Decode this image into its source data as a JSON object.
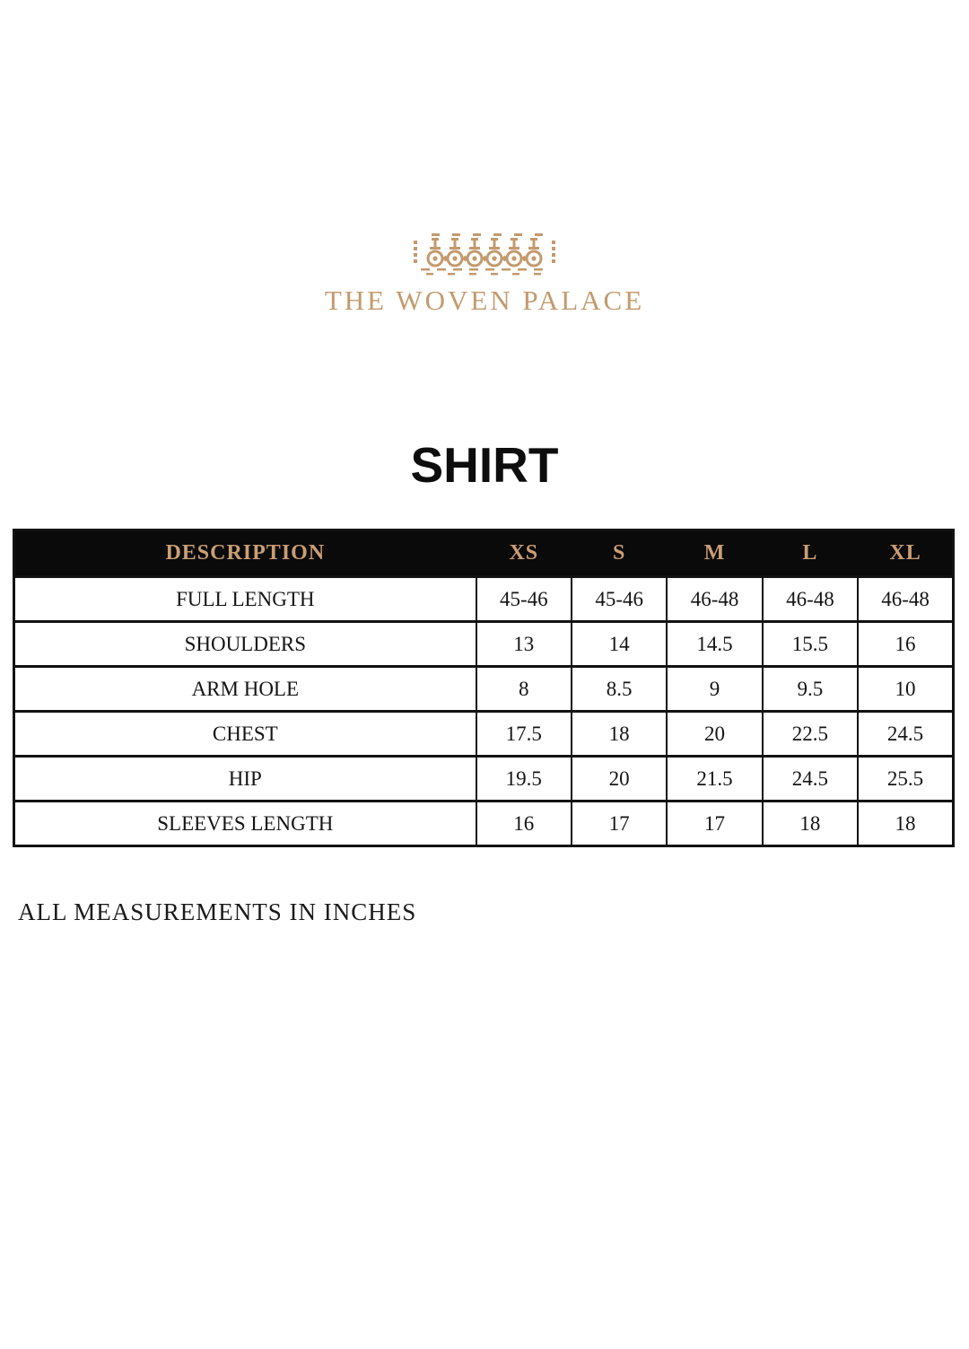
{
  "brand": {
    "name": "THE WOVEN PALACE",
    "ornament_icon": "palace-railing-ornament"
  },
  "page_title": "SHIRT",
  "size_chart": {
    "columns": [
      "DESCRIPTION",
      "XS",
      "S",
      "M",
      "L",
      "XL"
    ],
    "rows": [
      {
        "label": "FULL LENGTH",
        "values": [
          "45-46",
          "45-46",
          "46-48",
          "46-48",
          "46-48"
        ]
      },
      {
        "label": "SHOULDERS",
        "values": [
          "13",
          "14",
          "14.5",
          "15.5",
          "16"
        ]
      },
      {
        "label": "ARM HOLE",
        "values": [
          "8",
          "8.5",
          "9",
          "9.5",
          "10"
        ]
      },
      {
        "label": "CHEST",
        "values": [
          "17.5",
          "18",
          "20",
          "22.5",
          "24.5"
        ]
      },
      {
        "label": "HIP",
        "values": [
          "19.5",
          "20",
          "21.5",
          "24.5",
          "25.5"
        ]
      },
      {
        "label": "SLEEVES LENGTH",
        "values": [
          "16",
          "17",
          "17",
          "18",
          "18"
        ]
      }
    ]
  },
  "footnote": "ALL MEASUREMENTS IN INCHES",
  "colors": {
    "gold": "#c39a6e",
    "header_bg": "#0a0a0a",
    "header_text": "#cb9e74",
    "table_border": "#121212"
  }
}
